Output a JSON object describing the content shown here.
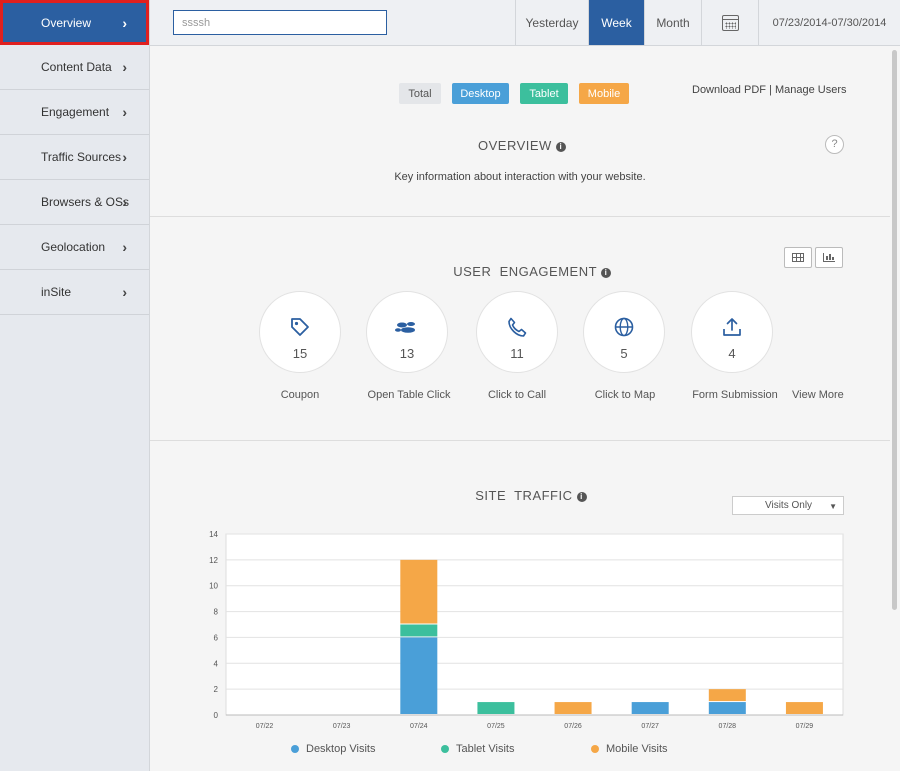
{
  "sidebar": {
    "items": [
      {
        "label": "Overview"
      },
      {
        "label": "Content Data"
      },
      {
        "label": "Engagement"
      },
      {
        "label": "Traffic Sources"
      },
      {
        "label": "Browsers & OSs"
      },
      {
        "label": "Geolocation"
      },
      {
        "label": "inSite"
      }
    ]
  },
  "header": {
    "search_value": "ssssh",
    "ranges": [
      "Yesterday",
      "Week",
      "Month"
    ],
    "active_range": "Week",
    "date_range": "07/23/2014-07/30/2014"
  },
  "filters": {
    "total": "Total",
    "desktop": "Desktop",
    "tablet": "Tablet",
    "mobile": "Mobile"
  },
  "links": {
    "download_pdf": "Download PDF",
    "separator": " | ",
    "manage_users": "Manage Users"
  },
  "overview": {
    "title": "OVERVIEW",
    "description": "Key information about interaction with your website."
  },
  "engagement": {
    "title": "USER  ENGAGEMENT",
    "items": [
      {
        "label": "Coupon",
        "value": "15",
        "icon": "tag-icon"
      },
      {
        "label": "Open Table Click",
        "value": "13",
        "icon": "open-table-icon"
      },
      {
        "label": "Click to Call",
        "value": "11",
        "icon": "phone-icon"
      },
      {
        "label": "Click to Map",
        "value": "5",
        "icon": "globe-icon"
      },
      {
        "label": "Form Submission",
        "value": "4",
        "icon": "upload-icon"
      }
    ],
    "view_more": "View More"
  },
  "traffic": {
    "title": "SITE  TRAFFIC",
    "select_value": "Visits Only"
  },
  "colors": {
    "desktop": "#4a9fd8",
    "tablet": "#3cbf9d",
    "mobile": "#f5a747",
    "total": "#e4e6e9",
    "primary": "#2b5fa1"
  },
  "chart_data": {
    "type": "bar",
    "stacked": true,
    "categories": [
      "07/22",
      "07/23",
      "07/24",
      "07/25",
      "07/26",
      "07/27",
      "07/28",
      "07/29"
    ],
    "series": [
      {
        "name": "Desktop Visits",
        "values": [
          0,
          0,
          6,
          0,
          0,
          1,
          1,
          0
        ]
      },
      {
        "name": "Tablet Visits",
        "values": [
          0,
          0,
          1,
          1,
          0,
          0,
          0,
          0
        ]
      },
      {
        "name": "Mobile Visits",
        "values": [
          0,
          0,
          5,
          0,
          1,
          0,
          1,
          1
        ]
      }
    ],
    "ylim": [
      0,
      14
    ],
    "yticks": [
      0,
      2,
      4,
      6,
      8,
      10,
      12,
      14
    ],
    "grid": true,
    "legend": "bottom"
  }
}
